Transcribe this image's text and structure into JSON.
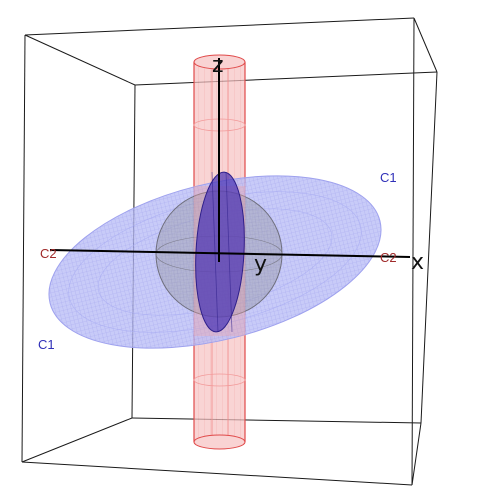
{
  "axes": {
    "x": "x",
    "y": "y",
    "z": "z"
  },
  "labels": {
    "c1_top_right": "C1",
    "c1_bottom_left": "C1",
    "c2_left": "C2",
    "c2_right": "C2"
  },
  "colors": {
    "box_edges": "#1a1a1a",
    "axis": "#000000",
    "cylinder": "#ee5a5a",
    "cylinder_fill": "#f6b9b9",
    "disk_ellipsoid": "#8c8ff0",
    "inner_ellipsoid": "#3b2aa8",
    "sphere": "#7a7a86",
    "c1_label": "#3030b8",
    "c2_label": "#a02a2a"
  }
}
